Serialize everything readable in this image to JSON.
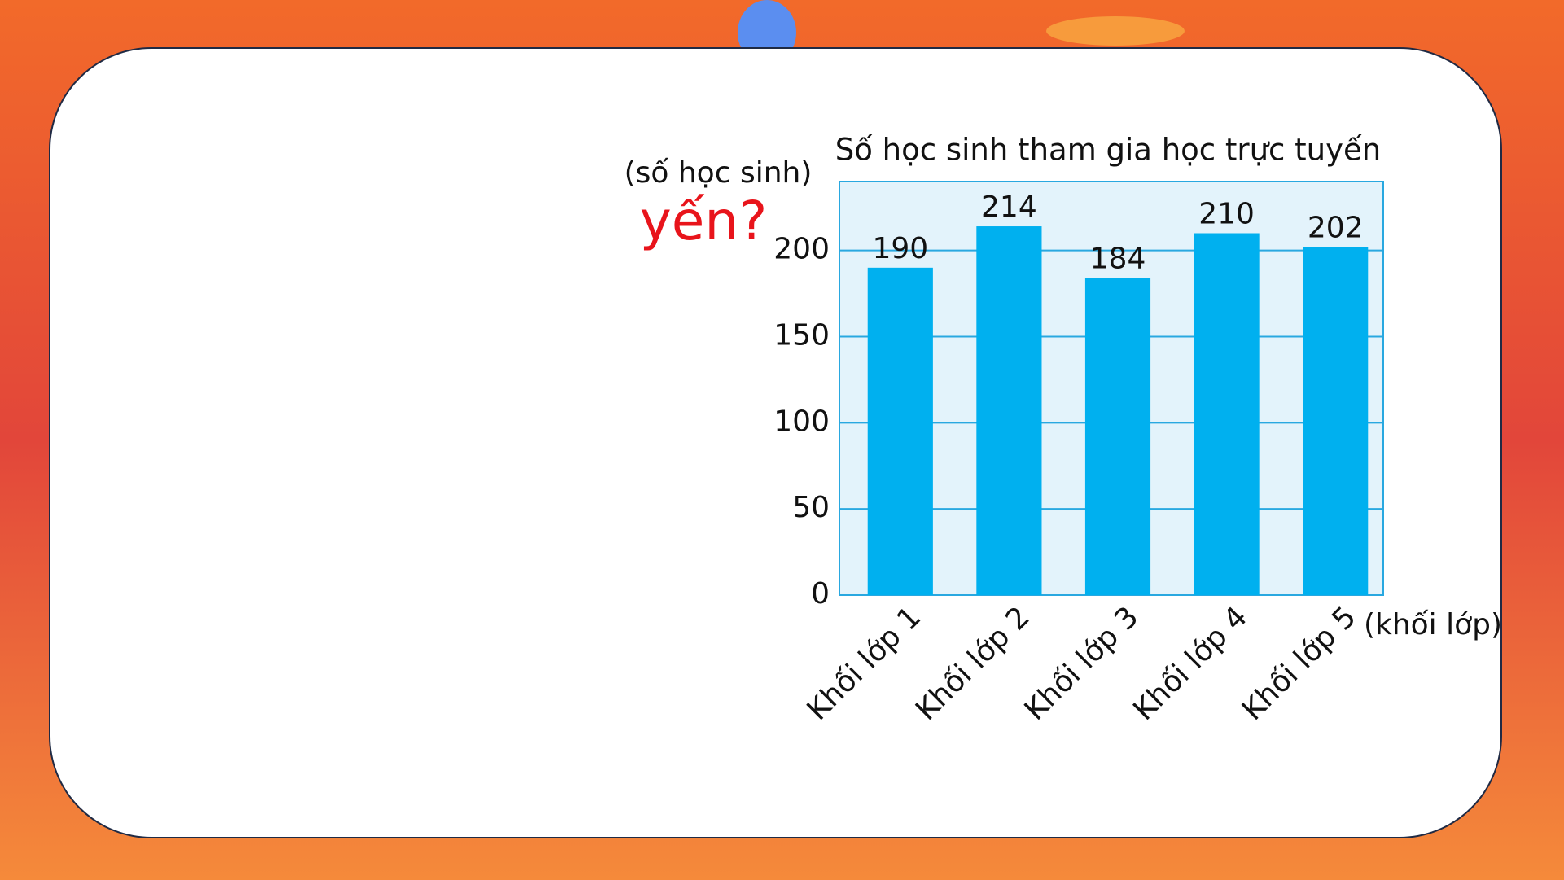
{
  "chart_data": {
    "type": "bar",
    "title": "Số học sinh tham gia học trực tuyến",
    "y_label": "(số học sinh)",
    "x_label": "(khối lớp)",
    "annotation": "yến?",
    "categories": [
      "Khối lớp 1",
      "Khối lớp 2",
      "Khối lớp 3",
      "Khối lớp 4",
      "Khối lớp 5"
    ],
    "values": [
      190,
      214,
      184,
      210,
      202
    ],
    "color": "#00b0ef",
    "ylim": [
      0,
      240
    ],
    "yticks": [
      0,
      50,
      100,
      150,
      200
    ],
    "grid": true
  }
}
